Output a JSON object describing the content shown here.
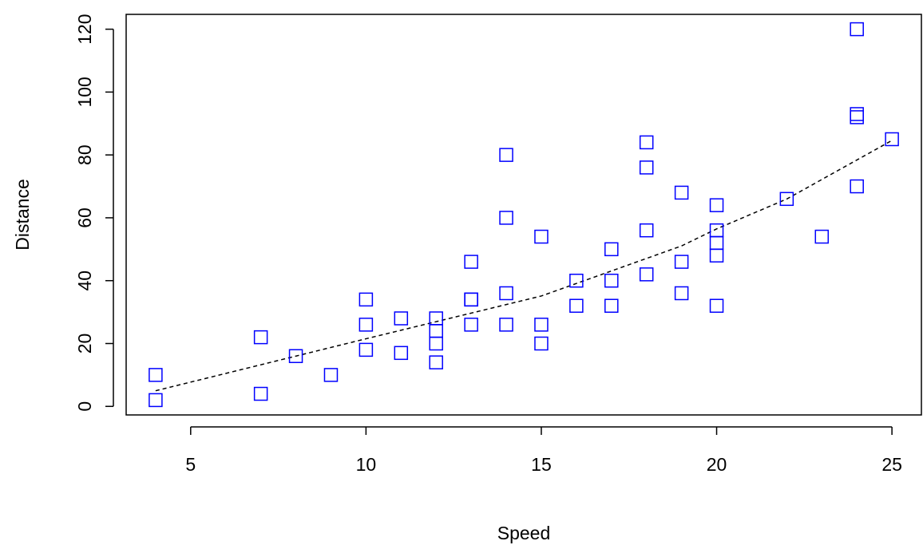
{
  "chart_data": {
    "type": "scatter",
    "title": "",
    "xlabel": "Speed",
    "ylabel": "Distance",
    "xlim": [
      3.16,
      25.84
    ],
    "ylim": [
      -2.72,
      124.72
    ],
    "xticks": [
      5,
      10,
      15,
      20,
      25
    ],
    "yticks": [
      0,
      20,
      40,
      60,
      80,
      100,
      120
    ],
    "grid": false,
    "legend": "none",
    "point_color": "#0000ff",
    "point_shape": "open-square",
    "series": [
      {
        "values": [
          [
            4,
            2
          ],
          [
            4,
            10
          ],
          [
            7,
            4
          ],
          [
            7,
            22
          ],
          [
            8,
            16
          ],
          [
            9,
            10
          ],
          [
            10,
            18
          ],
          [
            10,
            26
          ],
          [
            10,
            34
          ],
          [
            11,
            17
          ],
          [
            11,
            28
          ],
          [
            12,
            14
          ],
          [
            12,
            20
          ],
          [
            12,
            24
          ],
          [
            12,
            28
          ],
          [
            13,
            26
          ],
          [
            13,
            34
          ],
          [
            13,
            34
          ],
          [
            13,
            46
          ],
          [
            14,
            26
          ],
          [
            14,
            36
          ],
          [
            14,
            60
          ],
          [
            14,
            80
          ],
          [
            15,
            20
          ],
          [
            15,
            26
          ],
          [
            15,
            54
          ],
          [
            16,
            32
          ],
          [
            16,
            40
          ],
          [
            17,
            32
          ],
          [
            17,
            40
          ],
          [
            17,
            50
          ],
          [
            18,
            42
          ],
          [
            18,
            56
          ],
          [
            18,
            76
          ],
          [
            18,
            84
          ],
          [
            19,
            36
          ],
          [
            19,
            46
          ],
          [
            19,
            68
          ],
          [
            20,
            32
          ],
          [
            20,
            48
          ],
          [
            20,
            52
          ],
          [
            20,
            56
          ],
          [
            20,
            64
          ],
          [
            22,
            66
          ],
          [
            23,
            54
          ],
          [
            24,
            70
          ],
          [
            24,
            92
          ],
          [
            24,
            93
          ],
          [
            24,
            120
          ],
          [
            25,
            85
          ]
        ]
      }
    ],
    "trend_line": {
      "style": "dashed",
      "color": "#000000",
      "points": [
        [
          4,
          4.97
        ],
        [
          10,
          21.51
        ],
        [
          15,
          35.12
        ],
        [
          19,
          51.05
        ],
        [
          20,
          56.47
        ],
        [
          22,
          65.97
        ],
        [
          25,
          84.61
        ]
      ]
    }
  }
}
